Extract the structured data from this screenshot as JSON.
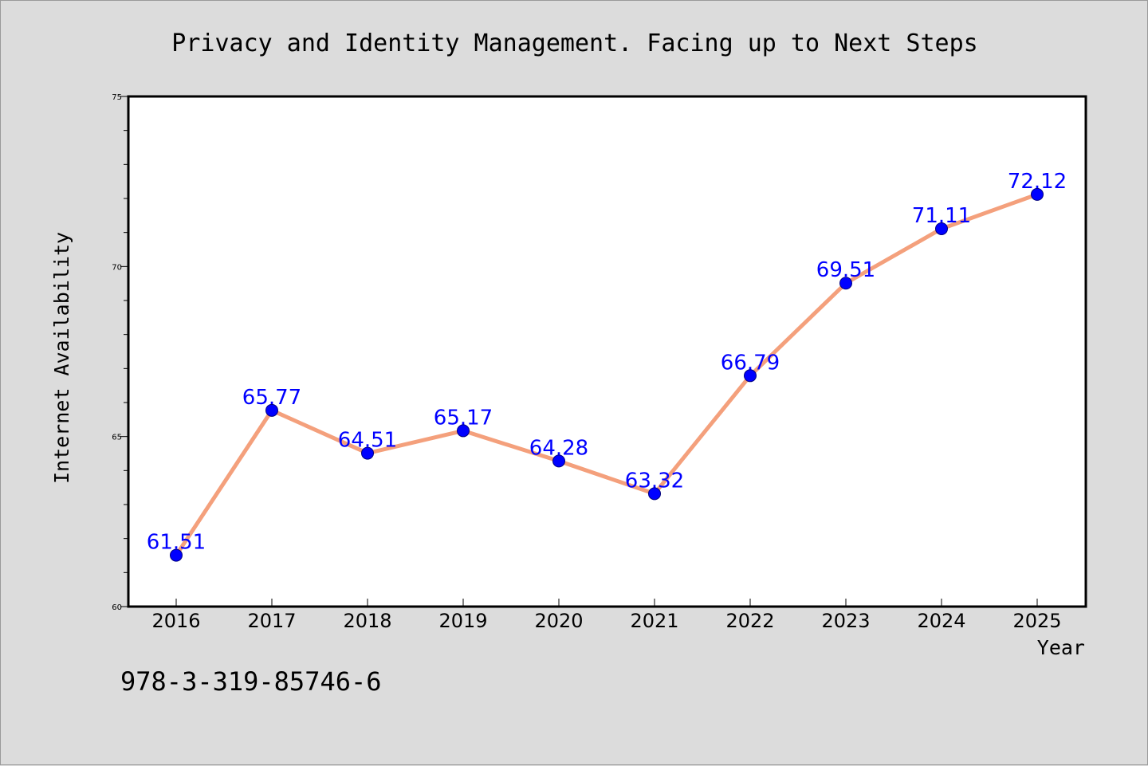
{
  "chart_data": {
    "type": "line",
    "title": "Privacy and Identity Management. Facing up to Next Steps",
    "xlabel": "Year",
    "ylabel": "Internet Availability",
    "categories": [
      "2016",
      "2017",
      "2018",
      "2019",
      "2020",
      "2021",
      "2022",
      "2023",
      "2024",
      "2025"
    ],
    "values": [
      61.51,
      65.77,
      64.51,
      65.17,
      64.28,
      63.32,
      66.79,
      69.51,
      71.11,
      72.12
    ],
    "data_labels": [
      "61.51",
      "65.77",
      "64.51",
      "65.17",
      "64.28",
      "63.32",
      "66.79",
      "69.51",
      "71.11",
      "72.12"
    ],
    "ylim": [
      60,
      75
    ],
    "yticks": [
      "60",
      "65",
      "70",
      "75"
    ],
    "grid": false,
    "legend": "none",
    "colors": {
      "line": "#f4a07c",
      "marker": "#0000ff",
      "marker_edge": "#000080",
      "label": "#0000ff",
      "plot_background": "#ffffff",
      "figure_background": "#dcdcdc"
    }
  },
  "footer": {
    "isbn": "978-3-319-85746-6"
  }
}
